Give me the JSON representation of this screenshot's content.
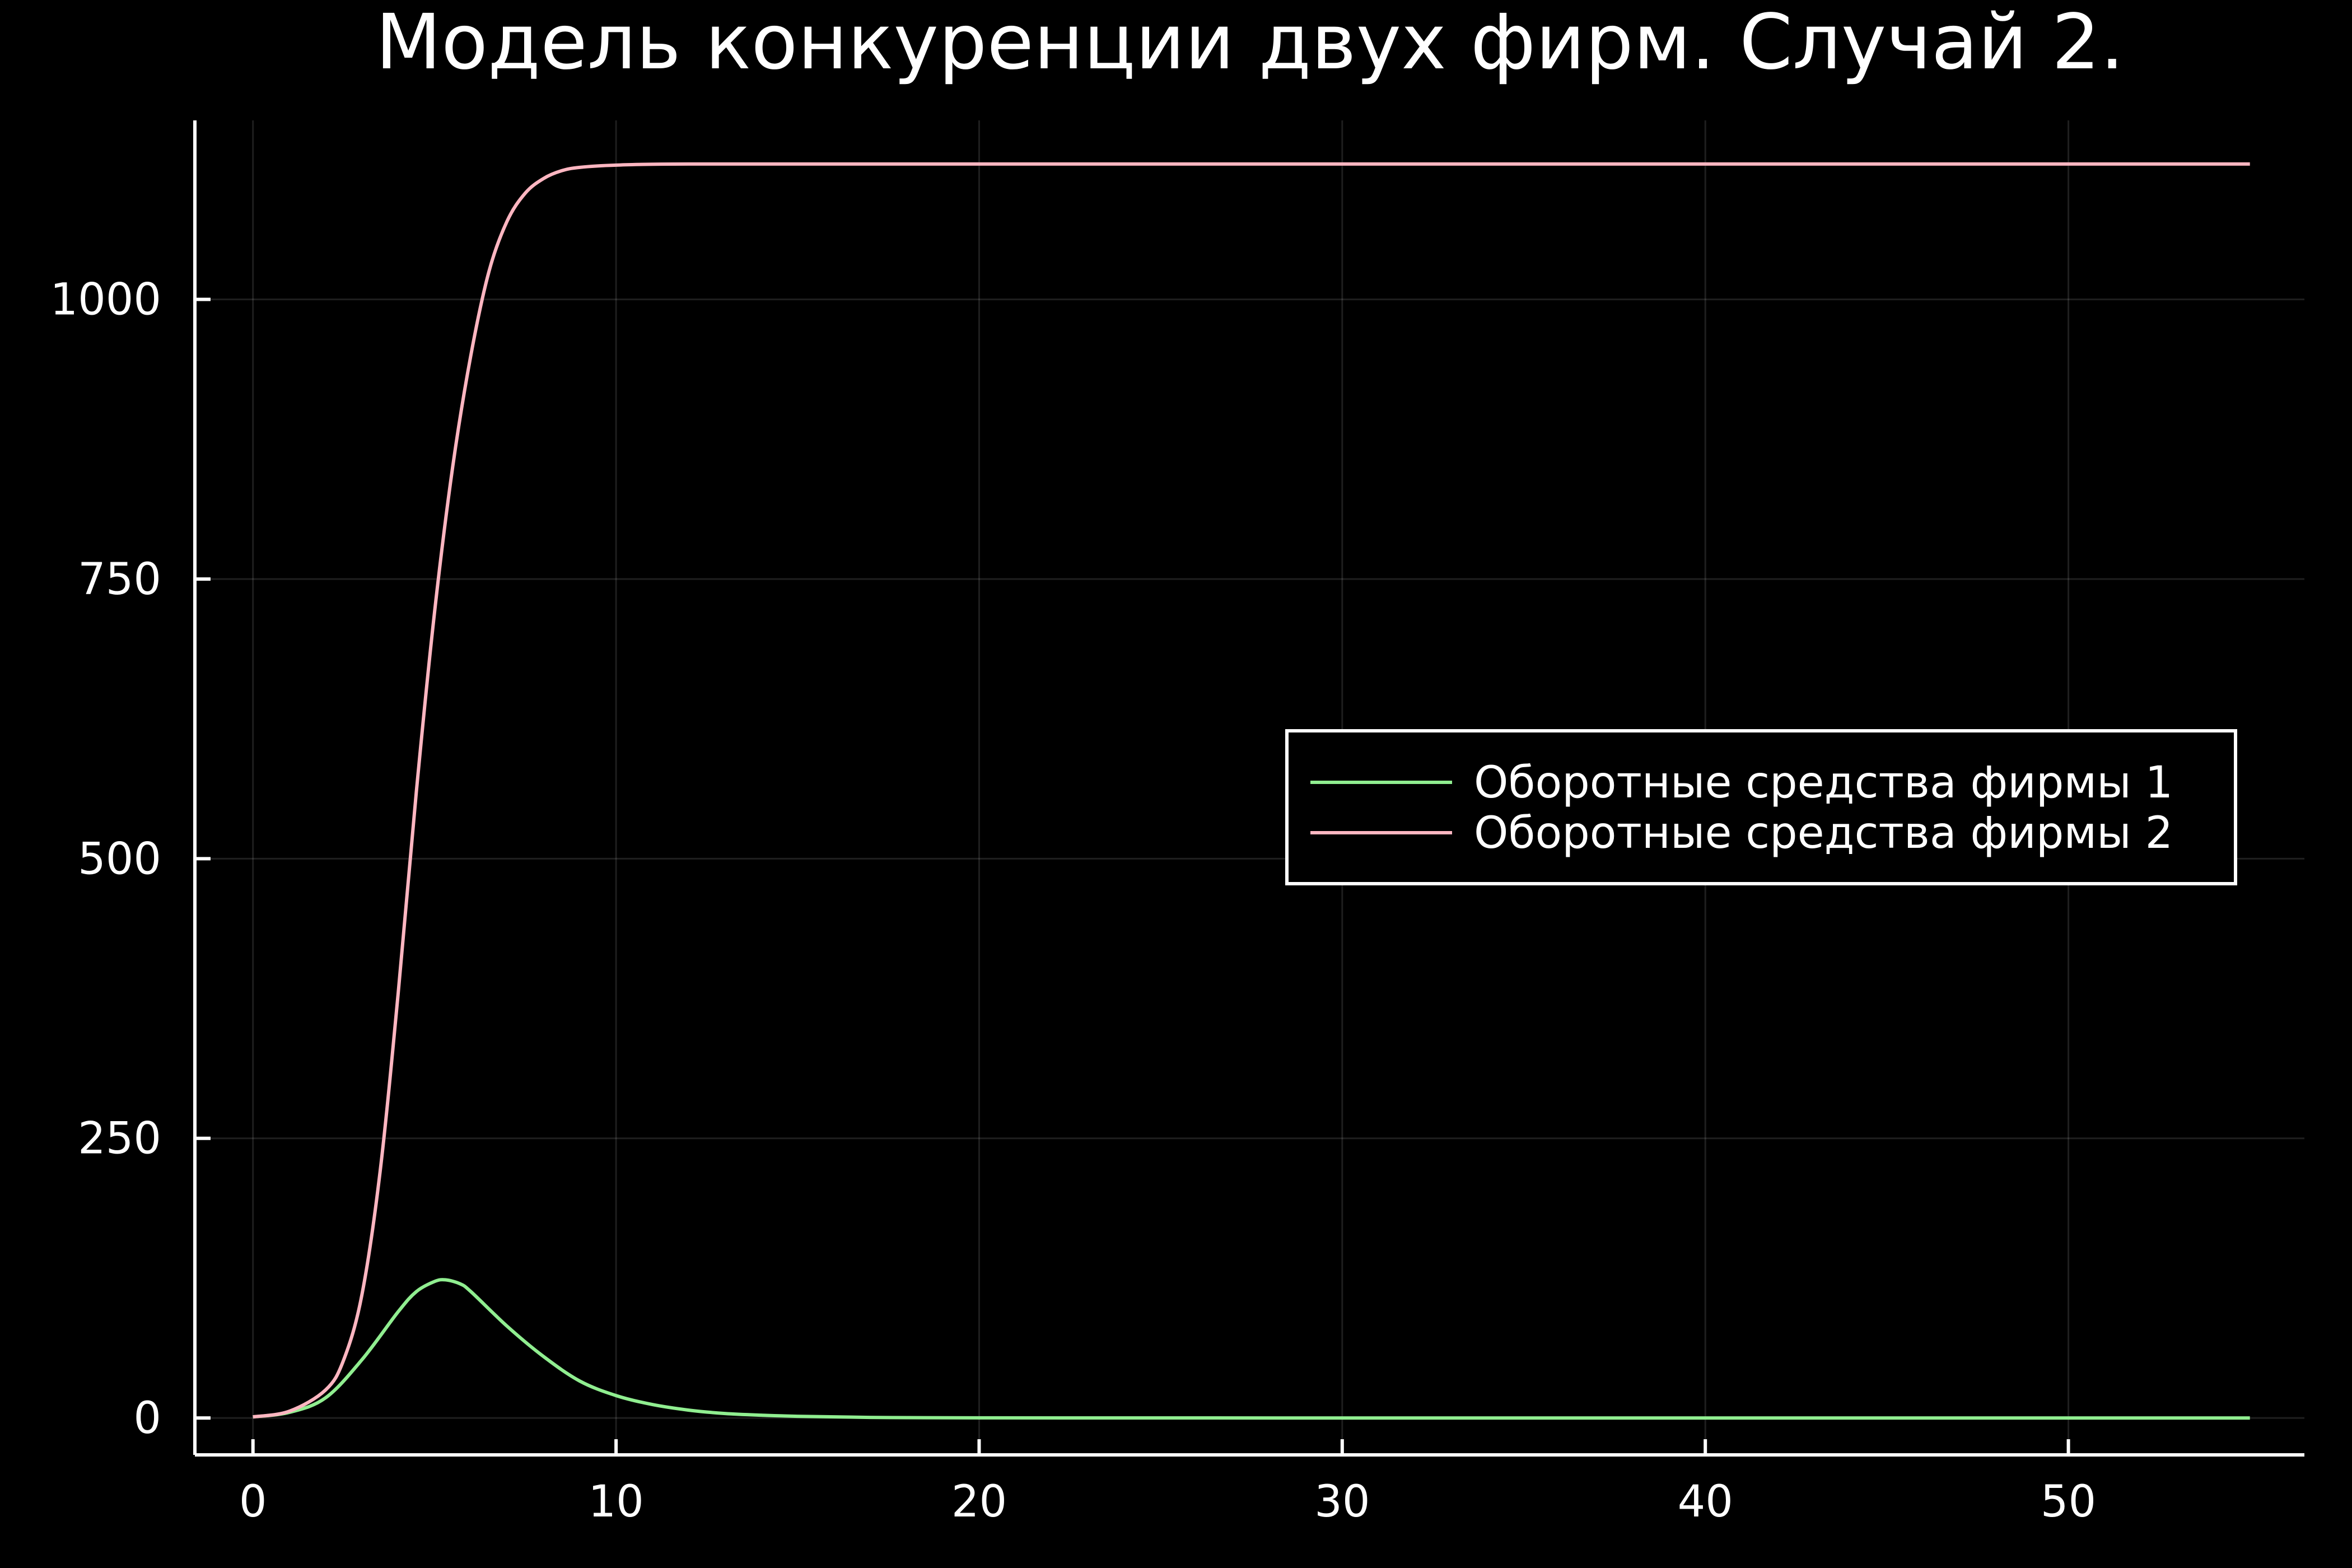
{
  "chart_data": {
    "type": "line",
    "title": "Модель конкуренции двух фирм. Случай 2.",
    "xlabel": "",
    "ylabel": "",
    "xlim": [
      -1.6,
      56.5
    ],
    "ylim": [
      -33,
      1160
    ],
    "grid": true,
    "legend_position": "right",
    "background": "#000000",
    "axis_color": "#ffffff",
    "x_ticks": [
      0,
      10,
      20,
      30,
      40,
      50
    ],
    "y_ticks": [
      0,
      250,
      500,
      750,
      1000
    ],
    "series": [
      {
        "name": "Оборотные средства фирмы 1",
        "color": "#90EE90",
        "points": [
          [
            0,
            1
          ],
          [
            1,
            5
          ],
          [
            2,
            18
          ],
          [
            3,
            52
          ],
          [
            4,
            95
          ],
          [
            4.5,
            113
          ],
          [
            5,
            122
          ],
          [
            5.3,
            123.5
          ],
          [
            5.7,
            120
          ],
          [
            6,
            113
          ],
          [
            7,
            82
          ],
          [
            8,
            55
          ],
          [
            9,
            33
          ],
          [
            10,
            20
          ],
          [
            11,
            12
          ],
          [
            12,
            7
          ],
          [
            13,
            4
          ],
          [
            14,
            2.5
          ],
          [
            15,
            1.5
          ],
          [
            17,
            0.5
          ],
          [
            20,
            0.1
          ],
          [
            30,
            0
          ],
          [
            40,
            0
          ],
          [
            55,
            0
          ]
        ]
      },
      {
        "name": "Оборотные средства фирмы 2",
        "color": "#FFB6C1",
        "points": [
          [
            0,
            1
          ],
          [
            1,
            6
          ],
          [
            2,
            25
          ],
          [
            2.5,
            52
          ],
          [
            3,
            110
          ],
          [
            3.5,
            220
          ],
          [
            4,
            380
          ],
          [
            4.5,
            560
          ],
          [
            5,
            720
          ],
          [
            5.5,
            850
          ],
          [
            6,
            950
          ],
          [
            6.5,
            1025
          ],
          [
            7,
            1070
          ],
          [
            7.5,
            1095
          ],
          [
            8,
            1108
          ],
          [
            8.5,
            1115
          ],
          [
            9,
            1118
          ],
          [
            10,
            1120
          ],
          [
            12,
            1121
          ],
          [
            20,
            1121
          ],
          [
            30,
            1121
          ],
          [
            40,
            1121
          ],
          [
            55,
            1121
          ]
        ]
      }
    ]
  }
}
